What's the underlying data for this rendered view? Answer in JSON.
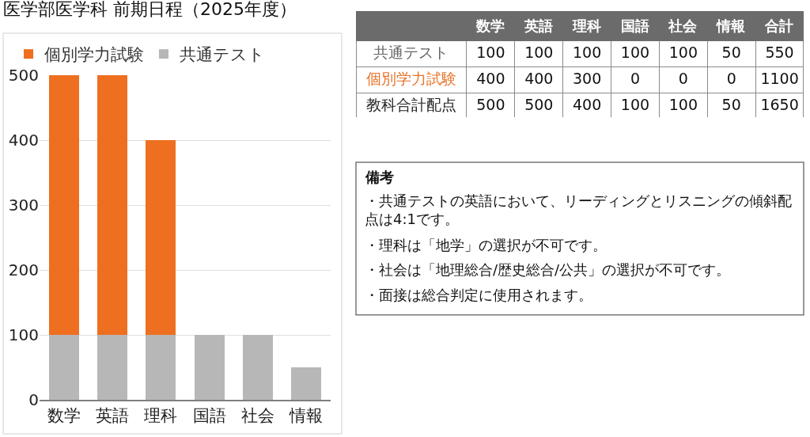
{
  "chart_data": [
    {
      "type": "bar",
      "title": "医学部医学科 前期日程（2025年度）",
      "categories": [
        "数学",
        "英語",
        "理科",
        "国語",
        "社会",
        "情報"
      ],
      "series": [
        {
          "name": "共通テスト",
          "color": "#b7b7b7",
          "values": [
            100,
            100,
            100,
            100,
            100,
            50
          ]
        },
        {
          "name": "個別学力試験",
          "color": "#ee6f1f",
          "values": [
            400,
            400,
            300,
            0,
            0,
            0
          ]
        }
      ],
      "stacked": true,
      "ylim": [
        0,
        500
      ],
      "yticks": [
        0,
        100,
        200,
        300,
        400,
        500
      ],
      "grid": "y",
      "legend": "top"
    },
    {
      "type": "other",
      "categories": [
        "数学",
        "英語",
        "理科",
        "国語",
        "社会",
        "情報",
        "合計"
      ],
      "series": [
        {
          "name": "共通テスト",
          "values": [
            100,
            100,
            100,
            100,
            100,
            50,
            550
          ]
        },
        {
          "name": "個別学力試験",
          "values": [
            400,
            400,
            300,
            0,
            0,
            0,
            1100
          ]
        },
        {
          "name": "教科合計配点",
          "values": [
            500,
            500,
            400,
            100,
            100,
            50,
            1650
          ]
        }
      ],
      "data_labels": true
    },
    {
      "type": "other",
      "title": "備考",
      "annotations": [
        "・共通テストの英語において、リーディングとリスニングの傾斜配点は4:1です。",
        "・理科は「地学」の選択が不可です。",
        "・社会は「地理総合/歴史総合/公共」の選択が不可です。",
        "・面接は総合判定に使用されます。"
      ]
    }
  ]
}
